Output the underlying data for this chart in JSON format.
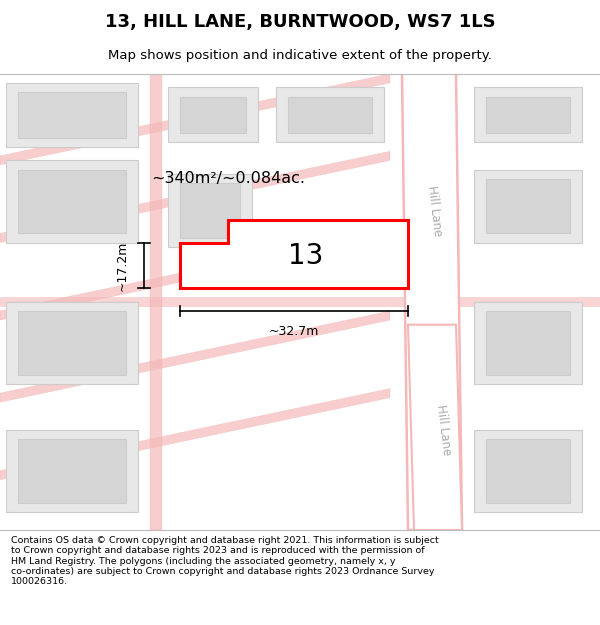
{
  "title": "13, HILL LANE, BURNTWOOD, WS7 1LS",
  "subtitle": "Map shows position and indicative extent of the property.",
  "footer": "Contains OS data © Crown copyright and database right 2021. This information is subject\nto Crown copyright and database rights 2023 and is reproduced with the permission of\nHM Land Registry. The polygons (including the associated geometry, namely x, y\nco-ordinates) are subject to Crown copyright and database rights 2023 Ordnance Survey\n100026316.",
  "map_bg": "#ffffff",
  "building_fill": "#e8e8e8",
  "building_edge": "#cccccc",
  "road_color": "#f5b8b8",
  "road_edge": "#e08888",
  "property_color": "#ff0000",
  "area_label": "~340m²/~0.084ac.",
  "dim_width": "~32.7m",
  "dim_height": "~17.2m",
  "number_label": "13",
  "hill_lane_label": "Hill Lane"
}
